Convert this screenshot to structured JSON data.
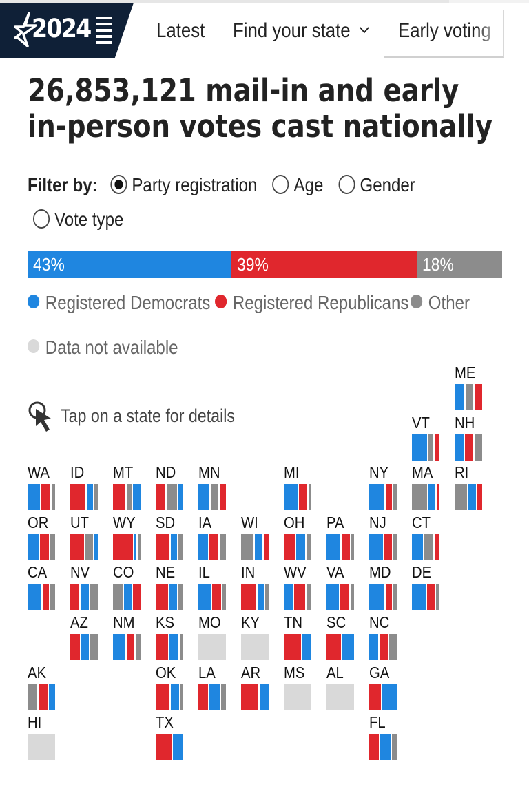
{
  "header": {
    "logo_text": "2024",
    "nav": [
      {
        "label": "Latest"
      },
      {
        "label": "Find your state"
      },
      {
        "label": "Early voting"
      }
    ]
  },
  "headline": "26,853,121 mail-in and early in-person votes cast nationally",
  "filter": {
    "label": "Filter by:",
    "options": [
      {
        "label": "Party registration",
        "selected": true
      },
      {
        "label": "Age",
        "selected": false
      },
      {
        "label": "Gender",
        "selected": false
      },
      {
        "label": "Vote type",
        "selected": false
      }
    ]
  },
  "colors": {
    "dem": "#1f86e0",
    "rep": "#e0272d",
    "other": "#8c8c8c",
    "na": "#d9d9d9"
  },
  "national_bar": [
    {
      "key": "dem",
      "label": "43%",
      "value": 43
    },
    {
      "key": "rep",
      "label": "39%",
      "value": 39
    },
    {
      "key": "other",
      "label": "18%",
      "value": 18
    }
  ],
  "legend": [
    {
      "key": "dem",
      "label": "Registered Democrats"
    },
    {
      "key": "rep",
      "label": "Registered Republicans"
    },
    {
      "key": "other",
      "label": "Other"
    },
    {
      "key": "na",
      "label": "Data not available"
    }
  ],
  "tap_hint": "Tap on a state for details",
  "states": [
    {
      "abbr": "ME",
      "col": 10,
      "row": 0,
      "order": [
        "dem",
        "other",
        "rep"
      ],
      "shares": [
        0.4,
        0.3,
        0.3
      ]
    },
    {
      "abbr": "VT",
      "col": 9,
      "row": 1,
      "order": [
        "dem",
        "other",
        "rep"
      ],
      "shares": [
        0.6,
        0.2,
        0.2
      ]
    },
    {
      "abbr": "NH",
      "col": 10,
      "row": 1,
      "order": [
        "dem",
        "rep",
        "other"
      ],
      "shares": [
        0.35,
        0.35,
        0.3
      ]
    },
    {
      "abbr": "WA",
      "col": 0,
      "row": 2,
      "order": [
        "dem",
        "rep",
        "other"
      ],
      "shares": [
        0.5,
        0.35,
        0.15
      ]
    },
    {
      "abbr": "ID",
      "col": 1,
      "row": 2,
      "order": [
        "rep",
        "dem",
        "other"
      ],
      "shares": [
        0.6,
        0.25,
        0.15
      ]
    },
    {
      "abbr": "MT",
      "col": 2,
      "row": 2,
      "order": [
        "rep",
        "other",
        "dem"
      ],
      "shares": [
        0.5,
        0.2,
        0.3
      ]
    },
    {
      "abbr": "ND",
      "col": 3,
      "row": 2,
      "order": [
        "rep",
        "other",
        "dem"
      ],
      "shares": [
        0.4,
        0.4,
        0.2
      ]
    },
    {
      "abbr": "MN",
      "col": 4,
      "row": 2,
      "order": [
        "dem",
        "other",
        "rep"
      ],
      "shares": [
        0.45,
        0.3,
        0.25
      ]
    },
    {
      "abbr": "MI",
      "col": 6,
      "row": 2,
      "order": [
        "dem",
        "rep",
        "other"
      ],
      "shares": [
        0.55,
        0.35,
        0.1
      ]
    },
    {
      "abbr": "NY",
      "col": 8,
      "row": 2,
      "order": [
        "dem",
        "rep",
        "other"
      ],
      "shares": [
        0.6,
        0.25,
        0.15
      ]
    },
    {
      "abbr": "MA",
      "col": 9,
      "row": 2,
      "order": [
        "other",
        "dem",
        "rep"
      ],
      "shares": [
        0.6,
        0.3,
        0.1
      ]
    },
    {
      "abbr": "RI",
      "col": 10,
      "row": 2,
      "order": [
        "other",
        "dem",
        "rep"
      ],
      "shares": [
        0.5,
        0.3,
        0.2
      ]
    },
    {
      "abbr": "OR",
      "col": 0,
      "row": 3,
      "order": [
        "dem",
        "rep",
        "other"
      ],
      "shares": [
        0.45,
        0.35,
        0.2
      ]
    },
    {
      "abbr": "UT",
      "col": 1,
      "row": 3,
      "order": [
        "rep",
        "other",
        "dem"
      ],
      "shares": [
        0.55,
        0.3,
        0.15
      ]
    },
    {
      "abbr": "WY",
      "col": 2,
      "row": 3,
      "order": [
        "rep",
        "dem",
        "other"
      ],
      "shares": [
        0.8,
        0.1,
        0.1
      ]
    },
    {
      "abbr": "SD",
      "col": 3,
      "row": 3,
      "order": [
        "rep",
        "dem",
        "other"
      ],
      "shares": [
        0.55,
        0.25,
        0.2
      ]
    },
    {
      "abbr": "IA",
      "col": 4,
      "row": 3,
      "order": [
        "dem",
        "rep",
        "other"
      ],
      "shares": [
        0.4,
        0.35,
        0.25
      ]
    },
    {
      "abbr": "WI",
      "col": 5,
      "row": 3,
      "order": [
        "other",
        "dem",
        "rep"
      ],
      "shares": [
        0.5,
        0.3,
        0.2
      ]
    },
    {
      "abbr": "OH",
      "col": 6,
      "row": 3,
      "order": [
        "rep",
        "dem",
        "other"
      ],
      "shares": [
        0.45,
        0.35,
        0.2
      ]
    },
    {
      "abbr": "PA",
      "col": 7,
      "row": 3,
      "order": [
        "dem",
        "rep",
        "other"
      ],
      "shares": [
        0.55,
        0.35,
        0.1
      ]
    },
    {
      "abbr": "NJ",
      "col": 8,
      "row": 3,
      "order": [
        "dem",
        "rep",
        "other"
      ],
      "shares": [
        0.55,
        0.3,
        0.15
      ]
    },
    {
      "abbr": "CT",
      "col": 9,
      "row": 3,
      "order": [
        "dem",
        "other",
        "rep"
      ],
      "shares": [
        0.45,
        0.35,
        0.2
      ]
    },
    {
      "abbr": "CA",
      "col": 0,
      "row": 4,
      "order": [
        "dem",
        "rep",
        "other"
      ],
      "shares": [
        0.55,
        0.25,
        0.2
      ]
    },
    {
      "abbr": "NV",
      "col": 1,
      "row": 4,
      "order": [
        "rep",
        "dem",
        "other"
      ],
      "shares": [
        0.35,
        0.35,
        0.3
      ]
    },
    {
      "abbr": "CO",
      "col": 2,
      "row": 4,
      "order": [
        "other",
        "dem",
        "rep"
      ],
      "shares": [
        0.4,
        0.3,
        0.3
      ]
    },
    {
      "abbr": "NE",
      "col": 3,
      "row": 4,
      "order": [
        "rep",
        "dem",
        "other"
      ],
      "shares": [
        0.5,
        0.3,
        0.2
      ]
    },
    {
      "abbr": "IL",
      "col": 4,
      "row": 4,
      "order": [
        "dem",
        "rep",
        "other"
      ],
      "shares": [
        0.5,
        0.35,
        0.15
      ]
    },
    {
      "abbr": "IN",
      "col": 5,
      "row": 4,
      "order": [
        "rep",
        "dem",
        "other"
      ],
      "shares": [
        0.6,
        0.25,
        0.15
      ]
    },
    {
      "abbr": "WV",
      "col": 6,
      "row": 4,
      "order": [
        "dem",
        "rep",
        "other"
      ],
      "shares": [
        0.35,
        0.45,
        0.2
      ]
    },
    {
      "abbr": "VA",
      "col": 7,
      "row": 4,
      "order": [
        "dem",
        "rep",
        "other"
      ],
      "shares": [
        0.5,
        0.35,
        0.15
      ]
    },
    {
      "abbr": "MD",
      "col": 8,
      "row": 4,
      "order": [
        "dem",
        "rep",
        "other"
      ],
      "shares": [
        0.6,
        0.25,
        0.15
      ]
    },
    {
      "abbr": "DE",
      "col": 9,
      "row": 4,
      "order": [
        "dem",
        "rep",
        "other"
      ],
      "shares": [
        0.55,
        0.3,
        0.15
      ]
    },
    {
      "abbr": "AZ",
      "col": 1,
      "row": 5,
      "order": [
        "rep",
        "dem",
        "other"
      ],
      "shares": [
        0.4,
        0.3,
        0.3
      ]
    },
    {
      "abbr": "NM",
      "col": 2,
      "row": 5,
      "order": [
        "dem",
        "rep",
        "other"
      ],
      "shares": [
        0.5,
        0.3,
        0.2
      ]
    },
    {
      "abbr": "KS",
      "col": 3,
      "row": 5,
      "order": [
        "rep",
        "dem",
        "other"
      ],
      "shares": [
        0.5,
        0.35,
        0.15
      ]
    },
    {
      "abbr": "MO",
      "col": 4,
      "row": 5,
      "order": [],
      "shares": []
    },
    {
      "abbr": "KY",
      "col": 5,
      "row": 5,
      "order": [],
      "shares": []
    },
    {
      "abbr": "TN",
      "col": 6,
      "row": 5,
      "order": [
        "rep",
        "dem"
      ],
      "shares": [
        0.65,
        0.35
      ]
    },
    {
      "abbr": "SC",
      "col": 7,
      "row": 5,
      "order": [
        "rep",
        "dem"
      ],
      "shares": [
        0.55,
        0.45
      ]
    },
    {
      "abbr": "NC",
      "col": 8,
      "row": 5,
      "order": [
        "dem",
        "rep",
        "other"
      ],
      "shares": [
        0.35,
        0.35,
        0.3
      ]
    },
    {
      "abbr": "AK",
      "col": 0,
      "row": 6,
      "order": [
        "other",
        "rep",
        "dem"
      ],
      "shares": [
        0.4,
        0.35,
        0.25
      ]
    },
    {
      "abbr": "OK",
      "col": 3,
      "row": 6,
      "order": [
        "rep",
        "dem",
        "other"
      ],
      "shares": [
        0.55,
        0.35,
        0.1
      ]
    },
    {
      "abbr": "LA",
      "col": 4,
      "row": 6,
      "order": [
        "rep",
        "dem",
        "other"
      ],
      "shares": [
        0.4,
        0.4,
        0.2
      ]
    },
    {
      "abbr": "AR",
      "col": 5,
      "row": 6,
      "order": [
        "rep",
        "dem"
      ],
      "shares": [
        0.65,
        0.35
      ]
    },
    {
      "abbr": "MS",
      "col": 6,
      "row": 6,
      "order": [],
      "shares": []
    },
    {
      "abbr": "AL",
      "col": 7,
      "row": 6,
      "order": [],
      "shares": []
    },
    {
      "abbr": "GA",
      "col": 8,
      "row": 6,
      "order": [
        "rep",
        "dem"
      ],
      "shares": [
        0.45,
        0.55
      ]
    },
    {
      "abbr": "HI",
      "col": 0,
      "row": 7,
      "order": [],
      "shares": []
    },
    {
      "abbr": "TX",
      "col": 3,
      "row": 7,
      "order": [
        "rep",
        "dem"
      ],
      "shares": [
        0.6,
        0.4
      ]
    },
    {
      "abbr": "FL",
      "col": 8,
      "row": 7,
      "order": [
        "rep",
        "dem",
        "other"
      ],
      "shares": [
        0.4,
        0.4,
        0.2
      ]
    }
  ]
}
